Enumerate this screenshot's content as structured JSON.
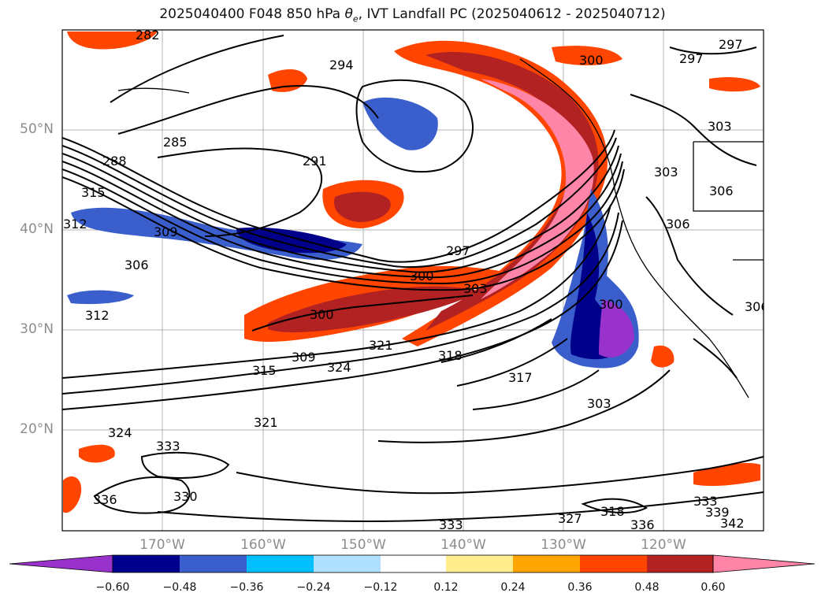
{
  "title": "2025040400 F048 850 hPa θe, IVT Landfall PC (2025040612 - 2025040712)",
  "title_parts": {
    "prefix": "2025040400 F048 850 hPa ",
    "theta": "θ",
    "sub": "e",
    "suffix": ", IVT Landfall PC (2025040612 - 2025040712)"
  },
  "lat_labels": [
    "50°N",
    "40°N",
    "30°N",
    "20°N"
  ],
  "lon_labels": [
    "170°W",
    "160°W",
    "150°W",
    "140°W",
    "130°W",
    "120°W"
  ],
  "colorbar": {
    "ticks": [
      "−0.60",
      "−0.48",
      "−0.36",
      "−0.24",
      "−0.12",
      "0.12",
      "0.24",
      "0.36",
      "0.48",
      "0.60"
    ],
    "colors": [
      "#9932cc",
      "#00008b",
      "#3a5fcd",
      "#00bfff",
      "#b0e0ff",
      "#ffffff",
      "#ffec8b",
      "#ffa500",
      "#ff4500",
      "#b22222",
      "#ff85a8"
    ]
  },
  "contour_labels": [
    "282",
    "294",
    "300",
    "297",
    "297",
    "285",
    "291",
    "288",
    "315",
    "312",
    "309",
    "306",
    "312",
    "297",
    "300",
    "303",
    "306",
    "300",
    "321",
    "309",
    "324",
    "315",
    "318",
    "303",
    "306",
    "303",
    "306",
    "300",
    "317",
    "303",
    "324",
    "321",
    "333",
    "336",
    "330",
    "327",
    "318",
    "336",
    "333",
    "342",
    "339",
    "333"
  ]
}
